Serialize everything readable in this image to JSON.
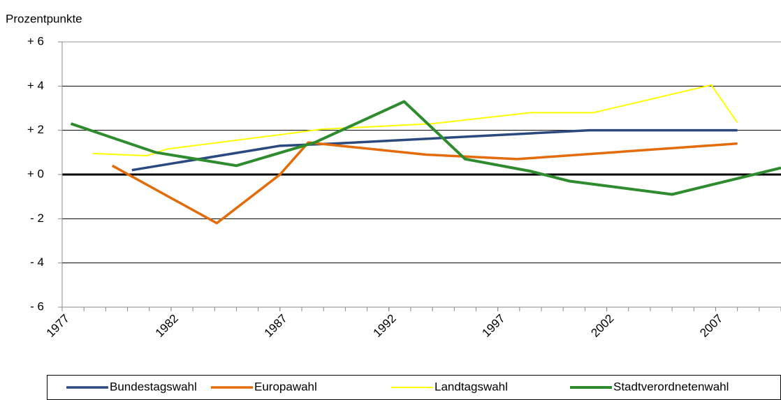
{
  "chart_data": {
    "type": "line",
    "y_label": "Prozentpunkte",
    "xlim": [
      1977,
      2010
    ],
    "xticks": [
      1977,
      1982,
      1987,
      1992,
      1997,
      2002,
      2007
    ],
    "ylim": [
      -6,
      6
    ],
    "yticks": [
      {
        "value": -6,
        "label": "- 6"
      },
      {
        "value": -4,
        "label": "- 4"
      },
      {
        "value": -2,
        "label": "- 2"
      },
      {
        "value": 0,
        "label": "+ 0"
      },
      {
        "value": 2,
        "label": "+ 2"
      },
      {
        "value": 4,
        "label": "+ 4"
      },
      {
        "value": 6,
        "label": "+ 6"
      }
    ],
    "grid": true,
    "legend": "bottom",
    "series": [
      {
        "name": "Bundestagswahl",
        "color": "#2a4a7f",
        "width": 3.5,
        "x": [
          1980.2,
          1987,
          1989.5,
          2001.2,
          2008
        ],
        "values": [
          0.2,
          1.3,
          1.4,
          2.0,
          2.0
        ]
      },
      {
        "name": "Europawahl",
        "color": "#e36c0a",
        "width": 3.5,
        "x": [
          1979.3,
          1984.1,
          1987,
          1988.3,
          1993.7,
          1997.9,
          2008
        ],
        "values": [
          0.4,
          -2.2,
          0,
          1.45,
          0.9,
          0.7,
          1.4
        ]
      },
      {
        "name": "Landtagswahl",
        "color": "#ffff00",
        "width": 2,
        "x": [
          1978.4,
          1980.9,
          1981.8,
          1987,
          1988.9,
          1994,
          1998.5,
          2001.4,
          2006.8,
          2008
        ],
        "values": [
          0.95,
          0.85,
          1.15,
          1.8,
          2.05,
          2.3,
          2.8,
          2.8,
          4.05,
          2.35
        ]
      },
      {
        "name": "Stadtverordnetenwahl",
        "color": "#2e8b2e",
        "width": 4,
        "x": [
          1977.4,
          1981.3,
          1985,
          1988.6,
          1992.7,
          1995.5,
          1998.5,
          2000.3,
          2005,
          2010
        ],
        "values": [
          2.3,
          1.0,
          0.4,
          1.45,
          3.3,
          0.7,
          0.15,
          -0.3,
          -0.9,
          0.3
        ]
      }
    ]
  }
}
